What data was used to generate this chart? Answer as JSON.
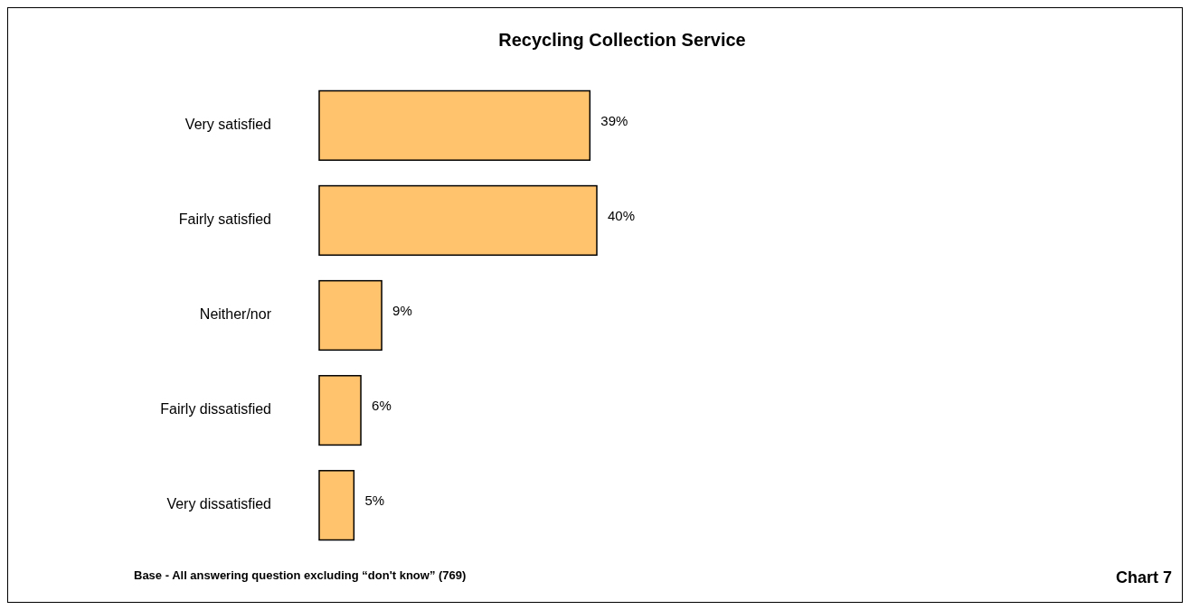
{
  "chart_data": {
    "type": "bar",
    "orientation": "horizontal",
    "title": "Recycling Collection Service",
    "categories": [
      "Very satisfied",
      "Fairly satisfied",
      "Neither/nor",
      "Fairly dissatisfied",
      "Very dissatisfied"
    ],
    "values": [
      39,
      40,
      9,
      6,
      5
    ],
    "value_labels": [
      "39%",
      "40%",
      "9%",
      "6%",
      "5%"
    ],
    "color": "#ffc36e",
    "annotations": [
      "Base - All answering question excluding “don't know” (769)",
      "Chart 7"
    ]
  }
}
